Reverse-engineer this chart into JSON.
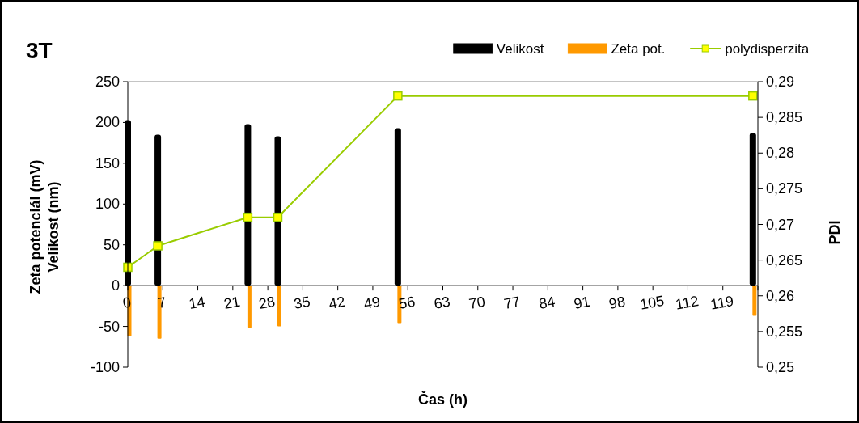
{
  "chart_data": {
    "type": "bar",
    "title": "3T",
    "xlabel": "Čas (h)",
    "ylabel": "Zeta potenciál (mV)\nVelikost (nm)",
    "y2label": "PDI",
    "xlim": [
      0,
      126
    ],
    "xticks": [
      0,
      7,
      14,
      21,
      28,
      35,
      42,
      49,
      56,
      63,
      70,
      77,
      84,
      91,
      98,
      105,
      112,
      119
    ],
    "ylim": [
      -100,
      250
    ],
    "yticks": [
      -100,
      -50,
      0,
      50,
      100,
      150,
      200,
      250
    ],
    "y2lim": [
      0.25,
      0.29
    ],
    "y2ticks": [
      {
        "value": 0.25,
        "label": "0,25"
      },
      {
        "value": 0.255,
        "label": "0,255"
      },
      {
        "value": 0.26,
        "label": "0,26"
      },
      {
        "value": 0.265,
        "label": "0,265"
      },
      {
        "value": 0.27,
        "label": "0,27"
      },
      {
        "value": 0.275,
        "label": "0,275"
      },
      {
        "value": 0.28,
        "label": "0,28"
      },
      {
        "value": 0.285,
        "label": "0,285"
      },
      {
        "value": 0.29,
        "label": "0,29"
      }
    ],
    "x": [
      0,
      6,
      24,
      30,
      54,
      125
    ],
    "series": [
      {
        "name": "Velikost",
        "color": "#000000",
        "values": [
          203,
          185,
          198,
          183,
          193,
          187
        ]
      },
      {
        "name": "Zeta pot.",
        "color": "#ff9900",
        "values": [
          -62,
          -65,
          -52,
          -50,
          -46,
          -37
        ]
      },
      {
        "name": "polydisperzita",
        "type": "line",
        "axis": "y2",
        "color": "#99cc00",
        "marker": "square",
        "values": [
          0.264,
          0.267,
          0.271,
          0.271,
          0.288,
          0.288
        ]
      }
    ],
    "legend": "top right"
  }
}
